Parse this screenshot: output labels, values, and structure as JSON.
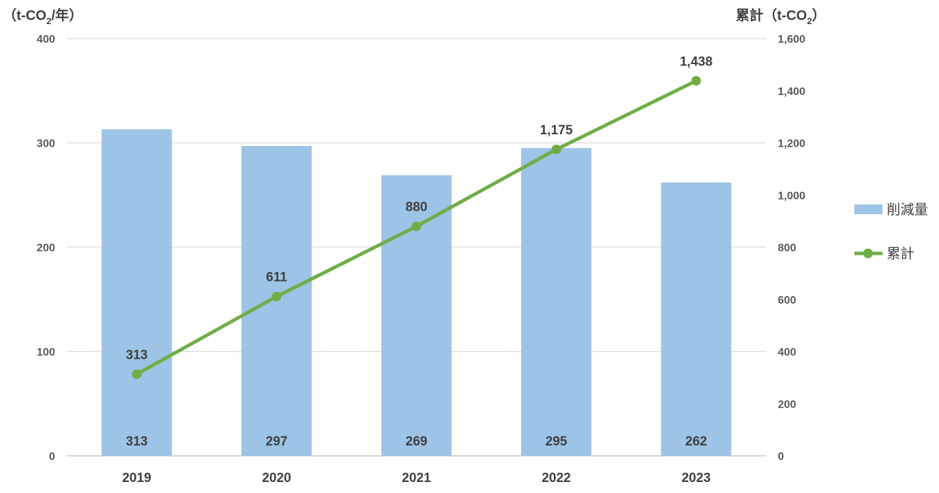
{
  "chart_data": {
    "type": "bar",
    "categories": [
      "2019",
      "2020",
      "2021",
      "2022",
      "2023"
    ],
    "left_axis": {
      "label_prefix": "（t-CO",
      "label_sub": "2",
      "label_suffix": "/年）",
      "ylim": [
        0,
        400
      ],
      "ticks": [
        "0",
        "100",
        "200",
        "300",
        "400"
      ]
    },
    "right_axis": {
      "label_prefix": "累計（t-CO",
      "label_sub": "2",
      "label_suffix": "）",
      "ylim": [
        0,
        1600
      ],
      "ticks": [
        "0",
        "200",
        "400",
        "600",
        "800",
        "1,000",
        "1,200",
        "1,400",
        "1,600"
      ]
    },
    "series": [
      {
        "name": "削減量",
        "type": "bar",
        "axis": "left",
        "color": "#9dc3e6",
        "values": [
          313,
          297,
          269,
          295,
          262
        ],
        "labels": [
          "313",
          "297",
          "269",
          "295",
          "262"
        ]
      },
      {
        "name": "累計",
        "type": "line",
        "axis": "right",
        "color": "#70ad47",
        "values": [
          313,
          611,
          880,
          1175,
          1438
        ],
        "labels": [
          "313",
          "611",
          "880",
          "1,175",
          "1,438"
        ]
      }
    ],
    "grid": true,
    "legend_position": "right"
  }
}
